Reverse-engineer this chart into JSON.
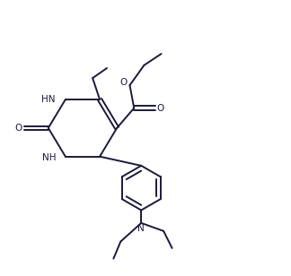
{
  "line_color": "#1a1a3a",
  "bg_color": "#ffffff",
  "line_width": 1.4,
  "figsize": [
    3.24,
    3.08
  ],
  "dpi": 100,
  "xlim": [
    0,
    10
  ],
  "ylim": [
    0,
    9.5
  ]
}
